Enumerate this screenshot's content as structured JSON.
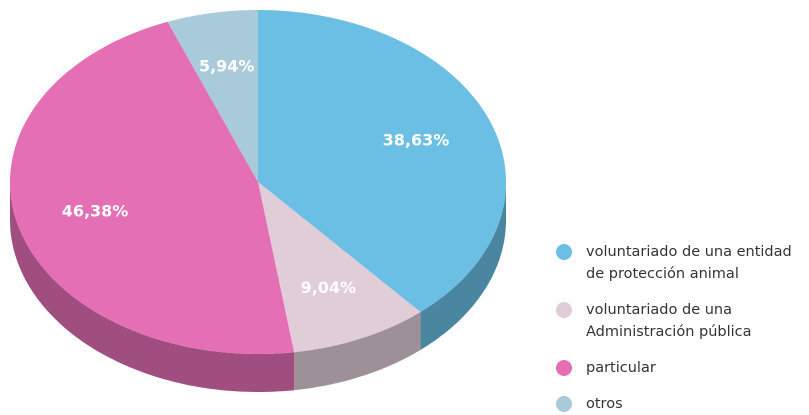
{
  "chart_data": {
    "type": "pie3d",
    "categories": [
      "voluntariado de una entidad de protección animal",
      "voluntariado de una Administración pública",
      "particular",
      "otros"
    ],
    "values": [
      38.63,
      9.04,
      46.38,
      5.94
    ],
    "value_labels": [
      "38,63%",
      "9,04%",
      "46,38%",
      "5,94%"
    ],
    "colors": [
      "#6bbfe4",
      "#e0cdd8",
      "#e46fb5",
      "#a9cbd9"
    ],
    "legend": "right"
  }
}
